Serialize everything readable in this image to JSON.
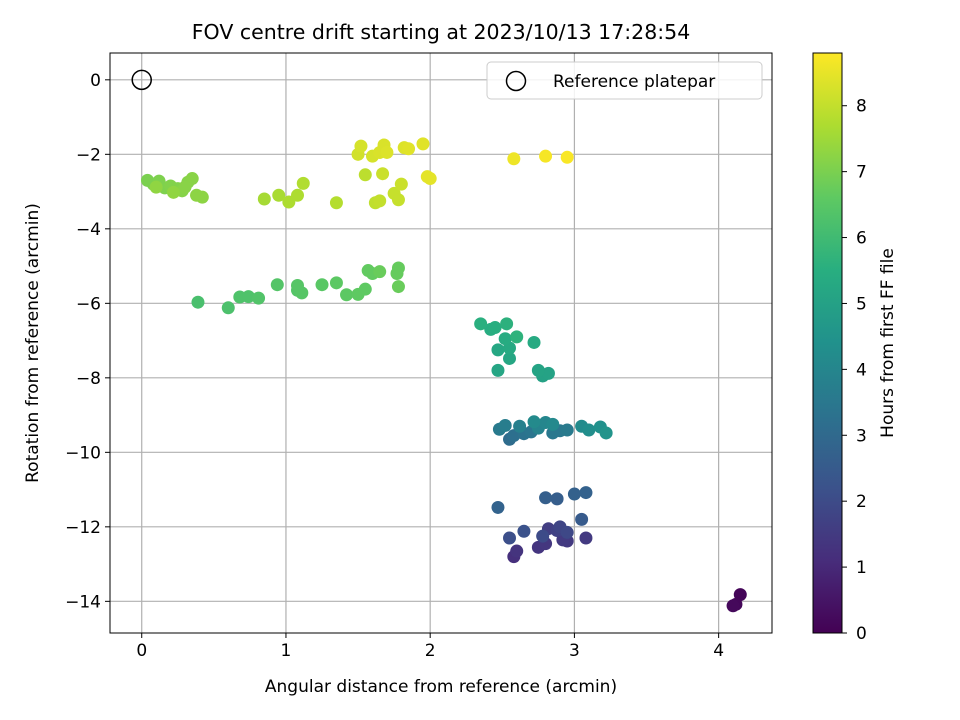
{
  "chart_data": {
    "type": "scatter",
    "title": "FOV centre drift starting at 2023/10/13 17:28:54",
    "xlabel": "Angular distance from reference (arcmin)",
    "ylabel": "Rotation from reference (arcmin)",
    "xlim": [
      -0.22,
      4.37
    ],
    "ylim": [
      -14.85,
      0.72
    ],
    "xticks": [
      0,
      1,
      2,
      3,
      4
    ],
    "yticks": [
      0,
      -2,
      -4,
      -6,
      -8,
      -10,
      -12,
      -14
    ],
    "grid": true,
    "legend": {
      "placement": "top-right",
      "entries": [
        "Reference platepar"
      ]
    },
    "reference_point": {
      "x": 0,
      "y": 0,
      "label": "Reference platepar"
    },
    "colorbar": {
      "label": "Hours from first FF file",
      "colormap": "viridis",
      "range": [
        0,
        8.8
      ],
      "ticks": [
        0,
        1,
        2,
        3,
        4,
        5,
        6,
        7,
        8
      ]
    },
    "series": [
      {
        "points": [
          {
            "x": 4.15,
            "y": -13.82,
            "c": 0.1
          },
          {
            "x": 4.12,
            "y": -14.08,
            "c": 0.15
          },
          {
            "x": 4.1,
            "y": -14.12,
            "c": 0.2
          },
          {
            "x": 2.58,
            "y": -12.8,
            "c": 1.2
          },
          {
            "x": 2.6,
            "y": -12.65,
            "c": 1.3
          },
          {
            "x": 2.75,
            "y": -12.55,
            "c": 1.35
          },
          {
            "x": 2.8,
            "y": -12.45,
            "c": 1.4
          },
          {
            "x": 2.95,
            "y": -12.38,
            "c": 1.45
          },
          {
            "x": 3.08,
            "y": -12.3,
            "c": 1.5
          },
          {
            "x": 2.92,
            "y": -12.35,
            "c": 1.5
          },
          {
            "x": 2.82,
            "y": -12.05,
            "c": 1.6
          },
          {
            "x": 2.88,
            "y": -12.1,
            "c": 1.7
          },
          {
            "x": 2.9,
            "y": -12.0,
            "c": 1.8
          },
          {
            "x": 2.95,
            "y": -12.15,
            "c": 1.9
          },
          {
            "x": 2.78,
            "y": -12.25,
            "c": 2.0
          },
          {
            "x": 2.55,
            "y": -12.3,
            "c": 2.1
          },
          {
            "x": 2.65,
            "y": -12.12,
            "c": 2.2
          },
          {
            "x": 3.05,
            "y": -11.8,
            "c": 2.5
          },
          {
            "x": 2.88,
            "y": -11.25,
            "c": 2.6
          },
          {
            "x": 2.8,
            "y": -11.22,
            "c": 2.65
          },
          {
            "x": 3.0,
            "y": -11.12,
            "c": 2.7
          },
          {
            "x": 3.08,
            "y": -11.08,
            "c": 2.75
          },
          {
            "x": 2.47,
            "y": -11.48,
            "c": 2.8
          },
          {
            "x": 2.55,
            "y": -9.65,
            "c": 3.1
          },
          {
            "x": 2.58,
            "y": -9.55,
            "c": 3.2
          },
          {
            "x": 2.65,
            "y": -9.5,
            "c": 3.3
          },
          {
            "x": 2.7,
            "y": -9.45,
            "c": 3.4
          },
          {
            "x": 2.85,
            "y": -9.48,
            "c": 3.5
          },
          {
            "x": 2.9,
            "y": -9.42,
            "c": 3.5
          },
          {
            "x": 2.95,
            "y": -9.4,
            "c": 3.6
          },
          {
            "x": 2.48,
            "y": -9.38,
            "c": 3.6
          },
          {
            "x": 2.52,
            "y": -9.28,
            "c": 3.7
          },
          {
            "x": 2.62,
            "y": -9.3,
            "c": 3.8
          },
          {
            "x": 2.75,
            "y": -9.35,
            "c": 3.9
          },
          {
            "x": 2.8,
            "y": -9.2,
            "c": 4.0
          },
          {
            "x": 2.85,
            "y": -9.25,
            "c": 4.1
          },
          {
            "x": 2.72,
            "y": -9.18,
            "c": 4.15
          },
          {
            "x": 3.05,
            "y": -9.3,
            "c": 4.2
          },
          {
            "x": 3.1,
            "y": -9.4,
            "c": 4.3
          },
          {
            "x": 3.18,
            "y": -9.32,
            "c": 4.4
          },
          {
            "x": 3.22,
            "y": -9.48,
            "c": 4.5
          },
          {
            "x": 2.78,
            "y": -7.95,
            "c": 5.0
          },
          {
            "x": 2.82,
            "y": -7.88,
            "c": 5.05
          },
          {
            "x": 2.75,
            "y": -7.8,
            "c": 5.1
          },
          {
            "x": 2.47,
            "y": -7.8,
            "c": 5.15
          },
          {
            "x": 2.55,
            "y": -7.48,
            "c": 5.2
          },
          {
            "x": 2.47,
            "y": -7.25,
            "c": 5.25
          },
          {
            "x": 2.55,
            "y": -7.2,
            "c": 5.3
          },
          {
            "x": 2.72,
            "y": -7.05,
            "c": 5.35
          },
          {
            "x": 2.52,
            "y": -6.95,
            "c": 5.4
          },
          {
            "x": 2.42,
            "y": -6.7,
            "c": 5.45
          },
          {
            "x": 2.45,
            "y": -6.65,
            "c": 5.5
          },
          {
            "x": 2.35,
            "y": -6.55,
            "c": 5.55
          },
          {
            "x": 2.53,
            "y": -6.55,
            "c": 5.6
          },
          {
            "x": 2.6,
            "y": -6.9,
            "c": 5.65
          },
          {
            "x": 0.39,
            "y": -5.97,
            "c": 6.2
          },
          {
            "x": 0.6,
            "y": -6.12,
            "c": 6.25
          },
          {
            "x": 0.68,
            "y": -5.83,
            "c": 6.3
          },
          {
            "x": 0.74,
            "y": -5.82,
            "c": 6.3
          },
          {
            "x": 0.81,
            "y": -5.86,
            "c": 6.35
          },
          {
            "x": 0.94,
            "y": -5.5,
            "c": 6.4
          },
          {
            "x": 1.08,
            "y": -5.65,
            "c": 6.4
          },
          {
            "x": 1.11,
            "y": -5.72,
            "c": 6.45
          },
          {
            "x": 1.08,
            "y": -5.52,
            "c": 6.45
          },
          {
            "x": 1.25,
            "y": -5.5,
            "c": 6.5
          },
          {
            "x": 1.35,
            "y": -5.45,
            "c": 6.55
          },
          {
            "x": 1.42,
            "y": -5.77,
            "c": 6.55
          },
          {
            "x": 1.5,
            "y": -5.76,
            "c": 6.6
          },
          {
            "x": 1.55,
            "y": -5.62,
            "c": 6.6
          },
          {
            "x": 1.57,
            "y": -5.12,
            "c": 6.65
          },
          {
            "x": 1.6,
            "y": -5.2,
            "c": 6.65
          },
          {
            "x": 1.77,
            "y": -5.2,
            "c": 6.7
          },
          {
            "x": 1.78,
            "y": -5.05,
            "c": 6.7
          },
          {
            "x": 1.78,
            "y": -5.55,
            "c": 6.75
          },
          {
            "x": 1.65,
            "y": -5.15,
            "c": 6.75
          },
          {
            "x": 0.04,
            "y": -2.7,
            "c": 7.0
          },
          {
            "x": 0.08,
            "y": -2.8,
            "c": 7.0
          },
          {
            "x": 0.12,
            "y": -2.72,
            "c": 7.05
          },
          {
            "x": 0.16,
            "y": -2.9,
            "c": 7.05
          },
          {
            "x": 0.2,
            "y": -2.85,
            "c": 7.1
          },
          {
            "x": 0.25,
            "y": -2.92,
            "c": 7.1
          },
          {
            "x": 0.28,
            "y": -2.98,
            "c": 7.15
          },
          {
            "x": 0.32,
            "y": -2.75,
            "c": 7.15
          },
          {
            "x": 0.35,
            "y": -2.65,
            "c": 7.2
          },
          {
            "x": 0.3,
            "y": -2.88,
            "c": 7.2
          },
          {
            "x": 0.38,
            "y": -3.1,
            "c": 7.25
          },
          {
            "x": 0.42,
            "y": -3.15,
            "c": 7.25
          },
          {
            "x": 0.22,
            "y": -3.02,
            "c": 7.3
          },
          {
            "x": 0.1,
            "y": -2.88,
            "c": 7.3
          },
          {
            "x": 0.85,
            "y": -3.2,
            "c": 7.6
          },
          {
            "x": 0.95,
            "y": -3.1,
            "c": 7.65
          },
          {
            "x": 1.02,
            "y": -3.28,
            "c": 7.7
          },
          {
            "x": 1.08,
            "y": -3.1,
            "c": 7.7
          },
          {
            "x": 1.12,
            "y": -2.78,
            "c": 7.75
          },
          {
            "x": 1.35,
            "y": -3.3,
            "c": 7.8
          },
          {
            "x": 1.55,
            "y": -2.55,
            "c": 7.9
          },
          {
            "x": 1.62,
            "y": -3.3,
            "c": 7.95
          },
          {
            "x": 1.65,
            "y": -3.25,
            "c": 8.0
          },
          {
            "x": 1.75,
            "y": -3.05,
            "c": 8.05
          },
          {
            "x": 1.78,
            "y": -3.22,
            "c": 8.05
          },
          {
            "x": 1.8,
            "y": -2.8,
            "c": 8.1
          },
          {
            "x": 1.67,
            "y": -2.52,
            "c": 8.1
          },
          {
            "x": 1.5,
            "y": -2.0,
            "c": 8.2
          },
          {
            "x": 1.52,
            "y": -1.78,
            "c": 8.25
          },
          {
            "x": 1.6,
            "y": -2.05,
            "c": 8.25
          },
          {
            "x": 1.65,
            "y": -1.95,
            "c": 8.3
          },
          {
            "x": 1.68,
            "y": -1.75,
            "c": 8.3
          },
          {
            "x": 1.7,
            "y": -1.95,
            "c": 8.35
          },
          {
            "x": 1.82,
            "y": -1.82,
            "c": 8.35
          },
          {
            "x": 1.85,
            "y": -1.85,
            "c": 8.4
          },
          {
            "x": 1.95,
            "y": -1.72,
            "c": 8.4
          },
          {
            "x": 1.98,
            "y": -2.6,
            "c": 8.45
          },
          {
            "x": 2.0,
            "y": -2.65,
            "c": 8.45
          },
          {
            "x": 2.58,
            "y": -2.12,
            "c": 8.6
          },
          {
            "x": 2.8,
            "y": -2.05,
            "c": 8.7
          },
          {
            "x": 2.95,
            "y": -2.08,
            "c": 8.75
          }
        ]
      }
    ]
  }
}
